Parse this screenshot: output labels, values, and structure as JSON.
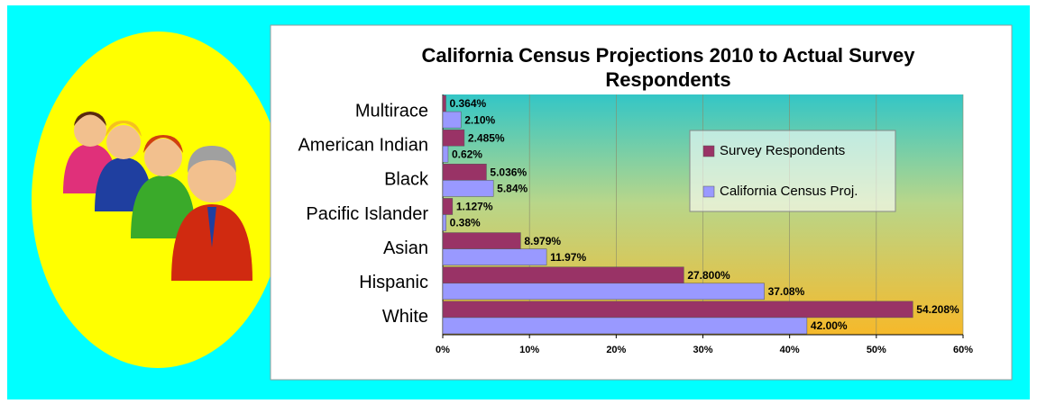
{
  "chart_data": {
    "type": "bar",
    "orientation": "horizontal",
    "title": "California Census Projections 2010 to Actual Survey Respondents",
    "categories": [
      "Multirace",
      "American Indian",
      "Black",
      "Pacific Islander",
      "Asian",
      "Hispanic",
      "White"
    ],
    "series": [
      {
        "name": "Survey Respondents",
        "color": "#993366",
        "values": [
          0.364,
          2.485,
          5.036,
          1.127,
          8.979,
          27.8,
          54.208
        ],
        "value_labels": [
          "0.364%",
          "2.485%",
          "5.036%",
          "1.127%",
          "8.979%",
          "27.800%",
          "54.208%"
        ]
      },
      {
        "name": "California Census Proj.",
        "color": "#9999ff",
        "values": [
          2.1,
          0.62,
          5.84,
          0.38,
          11.97,
          37.08,
          42.0
        ],
        "value_labels": [
          "2.10%",
          "0.62%",
          "5.84%",
          "0.38%",
          "11.97%",
          "37.08%",
          "42.00%"
        ]
      }
    ],
    "xlim": [
      0,
      60
    ],
    "xticks": [
      {
        "value": 0,
        "label": "0%"
      },
      {
        "value": 10,
        "label": "10%"
      },
      {
        "value": 20,
        "label": "20%"
      },
      {
        "value": 30,
        "label": "30%"
      },
      {
        "value": 40,
        "label": "40%"
      },
      {
        "value": 50,
        "label": "50%"
      },
      {
        "value": 60,
        "label": "60%"
      }
    ],
    "grid": true,
    "legend": "upper right"
  }
}
